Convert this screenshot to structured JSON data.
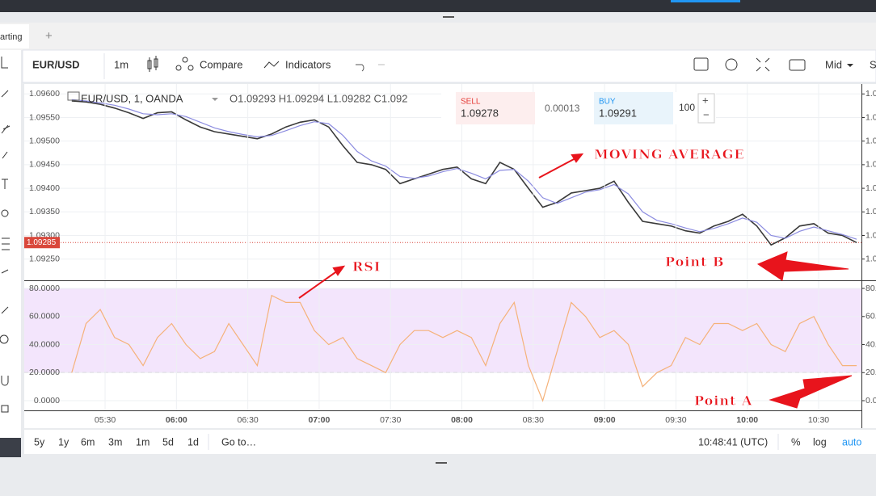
{
  "tabs": [
    "arting",
    "+"
  ],
  "toolbar": {
    "symbol": "EUR/USD",
    "interval": "1m",
    "compare": "Compare",
    "indicators": "Indicators",
    "price_source": "Mid",
    "cut": "S"
  },
  "legend": {
    "symbol": "EUR/USD, 1, OANDA",
    "ohlc": "O1.09293  H1.09294  L1.09282  C1.092"
  },
  "trade_panel": {
    "sell_label": "SELL",
    "sell_price": "1.09278",
    "spread": "0.00013",
    "buy_label": "BUY",
    "buy_price": "1.09291",
    "quantity": "100",
    "plus": "+",
    "minus": "−"
  },
  "annotations": [
    "MOVING AVERAGE",
    "RSI",
    "Point B",
    "Point A"
  ],
  "bottom_bar": {
    "ranges": [
      "5y",
      "1y",
      "6m",
      "3m",
      "1m",
      "5d",
      "1d"
    ],
    "goto": "Go to…",
    "clock": "10:48:41 (UTC)",
    "percent": "%",
    "log": "log",
    "auto": "auto"
  },
  "chart_data": [
    {
      "type": "line",
      "x": [
        316,
        322,
        328,
        334,
        340,
        346,
        352,
        358,
        364,
        370,
        376,
        382,
        388,
        394,
        400,
        406,
        412,
        418,
        424,
        430,
        436,
        442,
        448,
        454,
        460,
        466,
        472,
        478,
        484,
        490,
        496,
        502,
        508,
        514,
        520,
        526,
        532,
        538,
        544,
        550,
        556,
        562,
        568,
        574,
        580,
        586,
        592,
        598,
        604,
        610,
        616,
        622,
        628,
        634,
        640,
        646
      ],
      "series": [
        {
          "name": "EUR/USD",
          "color": "#3a3a3a",
          "values": [
            1.09585,
            1.09583,
            1.09578,
            1.0957,
            1.0956,
            1.09548,
            1.0956,
            1.09562,
            1.09545,
            1.0953,
            1.0952,
            1.09515,
            1.0951,
            1.09505,
            1.09515,
            1.0953,
            1.0954,
            1.09545,
            1.0953,
            1.0949,
            1.09455,
            1.0945,
            1.0944,
            1.0941,
            1.0942,
            1.0943,
            1.0944,
            1.09445,
            1.0942,
            1.0941,
            1.09455,
            1.0944,
            1.094,
            1.0936,
            1.0937,
            1.0939,
            1.09395,
            1.094,
            1.09415,
            1.0937,
            1.0933,
            1.09325,
            1.0932,
            1.0931,
            1.09305,
            1.0932,
            1.0933,
            1.09345,
            1.0932,
            1.0928,
            1.09295,
            1.0932,
            1.09325,
            1.09305,
            1.093,
            1.09285
          ]
        },
        {
          "name": "MA",
          "color": "#8c8ce0",
          "values": [
            1.09588,
            1.09585,
            1.09581,
            1.09576,
            1.09568,
            1.09558,
            1.09556,
            1.09558,
            1.09552,
            1.0954,
            1.09528,
            1.0952,
            1.09514,
            1.09509,
            1.09512,
            1.09522,
            1.09533,
            1.09541,
            1.09537,
            1.09512,
            1.09478,
            1.09458,
            1.09447,
            1.09425,
            1.09421,
            1.09426,
            1.09435,
            1.09442,
            1.09432,
            1.0942,
            1.09438,
            1.0944,
            1.09415,
            1.0938,
            1.09368,
            1.0938,
            1.09392,
            1.09397,
            1.09408,
            1.09388,
            1.0935,
            1.09332,
            1.09325,
            1.09316,
            1.09308,
            1.09315,
            1.09325,
            1.09337,
            1.09328,
            1.093,
            1.09294,
            1.09309,
            1.09318,
            1.0931,
            1.09302,
            1.09292
          ]
        }
      ],
      "xlim": [
        313,
        648
      ],
      "ylim": [
        1.09205,
        1.09621
      ],
      "yticks": [
        {
          "value": 1.096,
          "label": "1.09600"
        },
        {
          "value": 1.0955,
          "label": "1.09550"
        },
        {
          "value": 1.095,
          "label": "1.09500"
        },
        {
          "value": 1.0945,
          "label": "1.09450"
        },
        {
          "value": 1.094,
          "label": "1.09400"
        },
        {
          "value": 1.0935,
          "label": "1.09350"
        },
        {
          "value": 1.093,
          "label": "1.09300"
        },
        {
          "value": 1.0925,
          "label": "1.09250"
        }
      ],
      "last_price": 1.09285,
      "grid": true
    },
    {
      "type": "line",
      "x": [
        316,
        322,
        328,
        334,
        340,
        346,
        352,
        358,
        364,
        370,
        376,
        382,
        388,
        394,
        400,
        406,
        412,
        418,
        424,
        430,
        436,
        442,
        448,
        454,
        460,
        466,
        472,
        478,
        484,
        490,
        496,
        502,
        508,
        514,
        520,
        526,
        532,
        538,
        544,
        550,
        556,
        562,
        568,
        574,
        580,
        586,
        592,
        598,
        604,
        610,
        616,
        622,
        628,
        634,
        640,
        646
      ],
      "series": [
        {
          "name": "RSI",
          "color": "#f5b27a",
          "values": [
            20,
            55,
            65,
            45,
            40,
            25,
            45,
            55,
            40,
            30,
            35,
            55,
            40,
            25,
            75,
            70,
            70,
            50,
            40,
            45,
            30,
            25,
            20,
            40,
            50,
            50,
            45,
            50,
            45,
            25,
            55,
            70,
            25,
            0,
            35,
            70,
            60,
            45,
            50,
            40,
            10,
            20,
            25,
            45,
            40,
            55,
            55,
            50,
            55,
            40,
            35,
            55,
            60,
            40,
            25,
            25
          ]
        }
      ],
      "xlim": [
        313,
        648
      ],
      "ylim": [
        -6.9,
        85.2
      ],
      "band": [
        20,
        80
      ],
      "band_color": "#f3e5fc",
      "yticks": [
        {
          "value": 80,
          "label": "80.0000"
        },
        {
          "value": 60,
          "label": "60.0000"
        },
        {
          "value": 40,
          "label": "40.0000"
        },
        {
          "value": 20,
          "label": "20.0000"
        },
        {
          "value": 0,
          "label": "0.0000"
        }
      ],
      "xticks": [
        {
          "value": 330,
          "label": "05:30"
        },
        {
          "value": 360,
          "label": "06:00"
        },
        {
          "value": 390,
          "label": "06:30"
        },
        {
          "value": 420,
          "label": "07:00"
        },
        {
          "value": 450,
          "label": "07:30"
        },
        {
          "value": 480,
          "label": "08:00"
        },
        {
          "value": 510,
          "label": "08:30"
        },
        {
          "value": 540,
          "label": "09:00"
        },
        {
          "value": 570,
          "label": "09:30"
        },
        {
          "value": 600,
          "label": "10:00"
        },
        {
          "value": 630,
          "label": "10:30"
        }
      ],
      "grid": true
    }
  ]
}
